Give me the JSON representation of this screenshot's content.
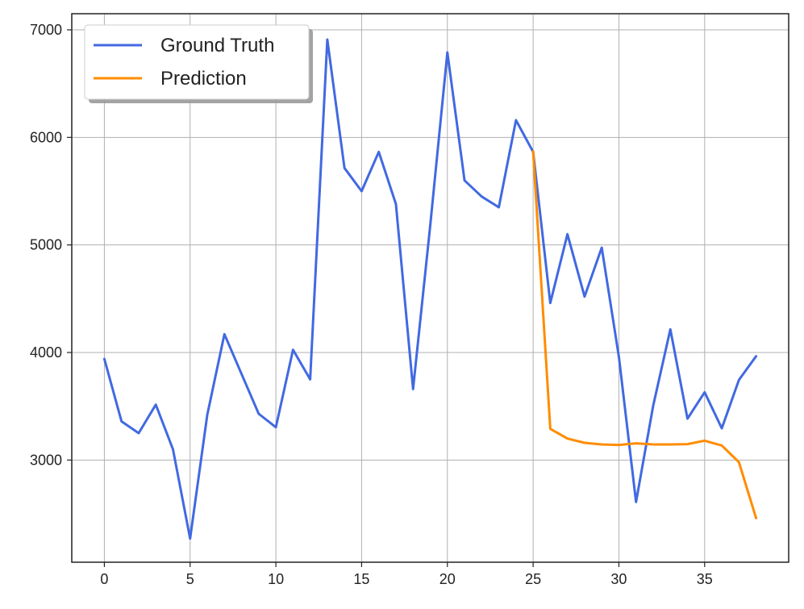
{
  "chart_data": {
    "type": "line",
    "title": "",
    "xlabel": "",
    "ylabel": "",
    "xlim": [
      -1.9,
      39.9
    ],
    "ylim": [
      2050,
      7150
    ],
    "xticks": [
      0,
      5,
      10,
      15,
      20,
      25,
      30,
      35
    ],
    "yticks": [
      3000,
      4000,
      5000,
      6000,
      7000
    ],
    "grid": true,
    "legend_position": "top-left",
    "series": [
      {
        "name": "Ground Truth",
        "color": "#4169e1",
        "x": [
          0,
          1,
          2,
          3,
          4,
          5,
          6,
          7,
          8,
          9,
          10,
          11,
          12,
          13,
          14,
          15,
          16,
          17,
          18,
          19,
          20,
          21,
          22,
          23,
          24,
          25,
          26,
          27,
          28,
          29,
          30,
          31,
          32,
          33,
          34,
          35,
          36,
          37,
          38
        ],
        "values": [
          3940,
          3360,
          3250,
          3515,
          3100,
          2270,
          3420,
          4170,
          3800,
          3430,
          3305,
          4025,
          3750,
          6910,
          5715,
          5500,
          5865,
          5380,
          3660,
          5180,
          6790,
          5600,
          5450,
          5350,
          6160,
          5865,
          4460,
          5100,
          4520,
          4975,
          3960,
          2610,
          3505,
          4215,
          3385,
          3630,
          3295,
          3745,
          3965
        ]
      },
      {
        "name": "Prediction",
        "color": "#ff8c00",
        "x": [
          25,
          26,
          27,
          28,
          29,
          30,
          31,
          32,
          33,
          34,
          35,
          36,
          37,
          38
        ],
        "values": [
          5870,
          3290,
          3200,
          3160,
          3145,
          3140,
          3155,
          3145,
          3145,
          3148,
          3180,
          3135,
          2980,
          2460
        ]
      }
    ]
  }
}
